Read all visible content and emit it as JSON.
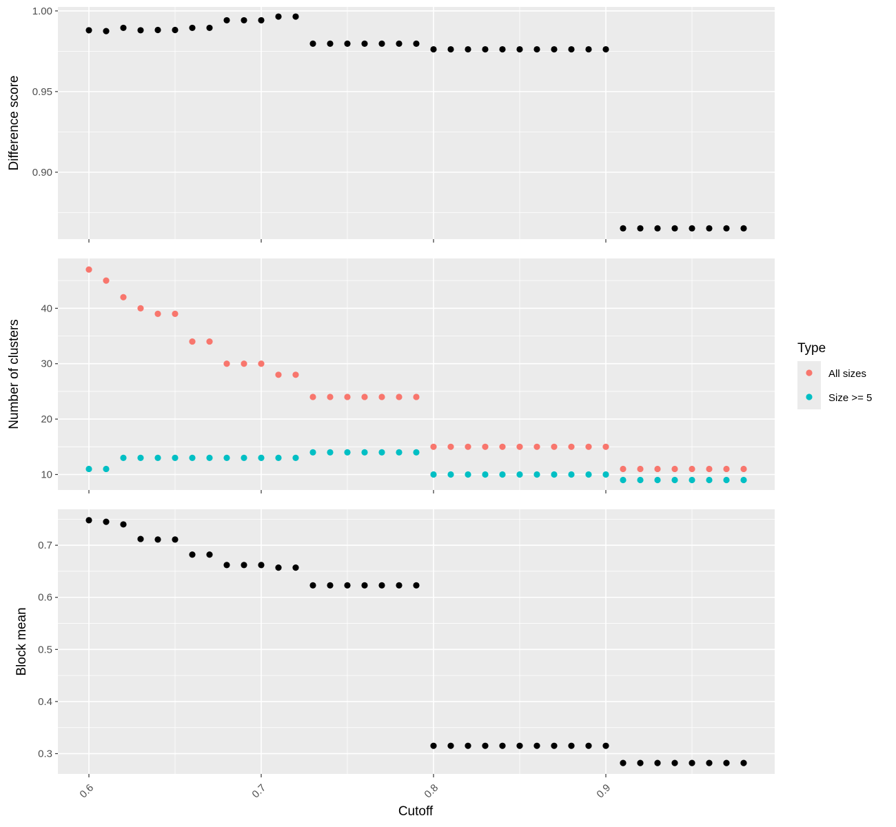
{
  "chart_data": {
    "type": "scatter",
    "x": [
      0.6,
      0.61,
      0.62,
      0.63,
      0.64,
      0.65,
      0.66,
      0.67,
      0.68,
      0.69,
      0.7,
      0.71,
      0.72,
      0.73,
      0.74,
      0.75,
      0.76,
      0.77,
      0.78,
      0.79,
      0.8,
      0.81,
      0.82,
      0.83,
      0.84,
      0.85,
      0.86,
      0.87,
      0.88,
      0.89,
      0.9,
      0.91,
      0.92,
      0.93,
      0.94,
      0.95,
      0.96,
      0.97,
      0.98
    ],
    "xlabel": "Cutoff",
    "xlim": [
      0.582,
      0.998
    ],
    "x_ticks": [
      0.6,
      0.7,
      0.8,
      0.9
    ],
    "x_tick_labels": [
      "0.6",
      "0.7",
      "0.8",
      "0.9"
    ],
    "grid": true,
    "legend": {
      "title": "Type",
      "position": "right",
      "entries": [
        {
          "label": "All sizes",
          "color": "#F8766D"
        },
        {
          "label": "Size >= 5",
          "color": "#00BFC4"
        }
      ]
    },
    "panels": [
      {
        "ylabel": "Difference score",
        "ylim": [
          0.8585,
          1.0025
        ],
        "y_ticks": [
          0.9,
          0.95,
          1.0
        ],
        "y_tick_labels": [
          "0.90",
          "0.95",
          "1.00"
        ],
        "series": [
          {
            "color": "#000000",
            "values": [
              0.988,
              0.9875,
              0.9895,
              0.988,
              0.9882,
              0.9882,
              0.9895,
              0.9895,
              0.9942,
              0.9942,
              0.9942,
              0.9965,
              0.9965,
              0.9797,
              0.9797,
              0.9797,
              0.9797,
              0.9797,
              0.9797,
              0.9797,
              0.9762,
              0.9762,
              0.9762,
              0.9762,
              0.9762,
              0.9762,
              0.9762,
              0.9762,
              0.9762,
              0.9762,
              0.9762,
              0.8652,
              0.8652,
              0.8652,
              0.8652,
              0.8652,
              0.8652,
              0.8652,
              0.8652
            ]
          }
        ]
      },
      {
        "ylabel": "Number of clusters",
        "ylim": [
          7.2,
          49.0
        ],
        "y_ticks": [
          10,
          20,
          30,
          40
        ],
        "y_tick_labels": [
          "10",
          "20",
          "30",
          "40"
        ],
        "series": [
          {
            "name": "All sizes",
            "color": "#F8766D",
            "values": [
              47,
              45,
              42,
              40,
              39,
              39,
              34,
              34,
              30,
              30,
              30,
              28,
              28,
              24,
              24,
              24,
              24,
              24,
              24,
              24,
              15,
              15,
              15,
              15,
              15,
              15,
              15,
              15,
              15,
              15,
              15,
              11,
              11,
              11,
              11,
              11,
              11,
              11,
              11
            ]
          },
          {
            "name": "Size >= 5",
            "color": "#00BFC4",
            "values": [
              11,
              11,
              13,
              13,
              13,
              13,
              13,
              13,
              13,
              13,
              13,
              13,
              13,
              14,
              14,
              14,
              14,
              14,
              14,
              14,
              10,
              10,
              10,
              10,
              10,
              10,
              10,
              10,
              10,
              10,
              10,
              9,
              9,
              9,
              9,
              9,
              9,
              9,
              9
            ]
          }
        ]
      },
      {
        "ylabel": "Block mean",
        "ylim": [
          0.261,
          0.769
        ],
        "y_ticks": [
          0.3,
          0.4,
          0.5,
          0.6,
          0.7
        ],
        "y_tick_labels": [
          "0.3",
          "0.4",
          "0.5",
          "0.6",
          "0.7"
        ],
        "series": [
          {
            "color": "#000000",
            "values": [
              0.748,
              0.745,
              0.74,
              0.712,
              0.711,
              0.711,
              0.682,
              0.682,
              0.662,
              0.662,
              0.662,
              0.657,
              0.657,
              0.623,
              0.623,
              0.623,
              0.623,
              0.623,
              0.623,
              0.623,
              0.315,
              0.315,
              0.315,
              0.315,
              0.315,
              0.315,
              0.315,
              0.315,
              0.315,
              0.315,
              0.315,
              0.282,
              0.282,
              0.282,
              0.282,
              0.282,
              0.282,
              0.282,
              0.282
            ]
          }
        ]
      }
    ]
  }
}
